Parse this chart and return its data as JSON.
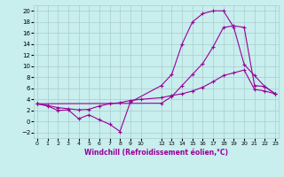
{
  "xlabel": "Windchill (Refroidissement éolien,°C)",
  "bg_color": "#c8eeee",
  "grid_color": "#aacccc",
  "line_color": "#990099",
  "ylim": [
    -3,
    21
  ],
  "xlim": [
    -0.3,
    23.3
  ],
  "yticks": [
    -2,
    0,
    2,
    4,
    6,
    8,
    10,
    12,
    14,
    16,
    18,
    20
  ],
  "xticks": [
    0,
    1,
    2,
    3,
    4,
    5,
    6,
    7,
    8,
    9,
    10,
    12,
    13,
    14,
    15,
    16,
    17,
    18,
    19,
    20,
    21,
    22,
    23
  ],
  "line1_x": [
    0,
    1,
    2,
    3,
    4,
    5,
    6,
    7,
    8,
    9,
    12,
    13,
    14,
    15,
    16,
    17,
    18,
    19,
    20,
    21,
    22,
    23
  ],
  "line1_y": [
    3.2,
    2.8,
    2.0,
    2.1,
    0.5,
    1.2,
    0.3,
    -0.5,
    -1.8,
    3.5,
    6.5,
    8.5,
    14,
    18,
    19.5,
    20,
    20,
    17,
    10.3,
    8.3,
    6.3,
    5.0
  ],
  "line2_x": [
    0,
    12,
    13,
    14,
    15,
    16,
    17,
    18,
    19,
    20,
    21,
    22,
    23
  ],
  "line2_y": [
    3.2,
    3.3,
    4.5,
    6.5,
    8.5,
    10.5,
    13.5,
    17.0,
    17.3,
    17.0,
    6.5,
    6.3,
    5.0
  ],
  "line3_x": [
    0,
    1,
    2,
    3,
    4,
    5,
    6,
    7,
    8,
    9,
    10,
    12,
    13,
    14,
    15,
    16,
    17,
    18,
    19,
    20,
    21,
    22,
    23
  ],
  "line3_y": [
    3.2,
    2.9,
    2.5,
    2.3,
    2.1,
    2.2,
    2.8,
    3.2,
    3.4,
    3.8,
    4.0,
    4.3,
    4.7,
    5.0,
    5.5,
    6.2,
    7.2,
    8.3,
    8.8,
    9.3,
    5.8,
    5.5,
    5.0
  ]
}
